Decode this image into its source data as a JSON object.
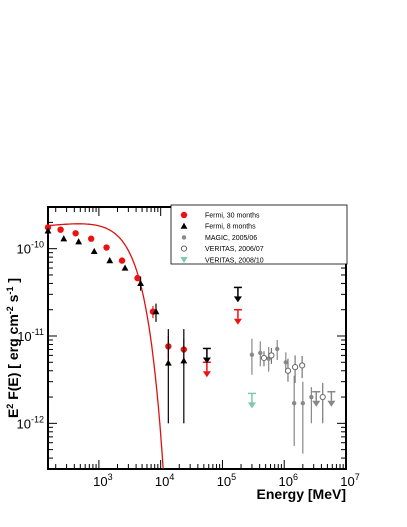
{
  "chart_data": {
    "type": "scatter",
    "xlabel": "Energy [MeV]",
    "ylabel": "E² F(E) [ erg cm⁻² s⁻¹ ]",
    "ylabel_parts": {
      "base": "E",
      "exp2": "2",
      "mid": " F(E) [ erg cm",
      "expm2": "-2",
      "s": " s",
      "expm1": "-1",
      "end": " ]"
    },
    "x_scale": "log",
    "y_scale": "log",
    "xlim": [
      150,
      10000000
    ],
    "ylim": [
      3e-13,
      3e-10
    ],
    "x_ticks": [
      {
        "value": 1000,
        "base": "10",
        "exp": "3"
      },
      {
        "value": 10000,
        "base": "10",
        "exp": "4"
      },
      {
        "value": 100000,
        "base": "10",
        "exp": "5"
      },
      {
        "value": 1000000,
        "base": "10",
        "exp": "6"
      },
      {
        "value": 10000000,
        "base": "10",
        "exp": "7"
      }
    ],
    "y_ticks": [
      {
        "value": 1e-12,
        "base": "10",
        "exp": "-12"
      },
      {
        "value": 1e-11,
        "base": "10",
        "exp": "-11"
      },
      {
        "value": 1e-10,
        "base": "10",
        "exp": "-10"
      }
    ],
    "legend_position": "top-right",
    "series": [
      {
        "name": "Fermi, 30 months",
        "marker": "circle",
        "color": "#ee1111",
        "points": [
          {
            "x": 150,
            "y": 1.75e-10
          },
          {
            "x": 240,
            "y": 1.65e-10
          },
          {
            "x": 420,
            "y": 1.5e-10
          },
          {
            "x": 750,
            "y": 1.3e-10
          },
          {
            "x": 1330,
            "y": 1.03e-10
          },
          {
            "x": 2370,
            "y": 7.3e-11
          },
          {
            "x": 4220,
            "y": 4.6e-11
          },
          {
            "x": 7500,
            "y": 1.9e-11,
            "ylo": 1.6e-11,
            "yhi": 2.2e-11
          },
          {
            "x": 13300,
            "y": 7.6e-12,
            "ylo": 5.4e-12,
            "yhi": 1e-11
          },
          {
            "x": 23700,
            "y": 7e-12,
            "ylo": 4.6e-12,
            "yhi": 9.3e-12
          }
        ],
        "upper_limits": [
          {
            "x": 56000,
            "y": 5e-12
          },
          {
            "x": 178000,
            "y": 2e-11
          }
        ]
      },
      {
        "name": "Fermi, 8 months",
        "marker": "triangle",
        "color": "#000000",
        "points": [
          {
            "x": 150,
            "y": 1.6e-10
          },
          {
            "x": 270,
            "y": 1.3e-10
          },
          {
            "x": 470,
            "y": 1.2e-10
          },
          {
            "x": 840,
            "y": 9.3e-11
          },
          {
            "x": 1500,
            "y": 7.3e-11
          },
          {
            "x": 2650,
            "y": 6e-11
          },
          {
            "x": 4730,
            "y": 4e-11,
            "ylo": 3.3e-11,
            "yhi": 4.8e-11
          },
          {
            "x": 8400,
            "y": 1.9e-11,
            "ylo": 1.45e-11,
            "yhi": 2.35e-11
          },
          {
            "x": 13300,
            "y": 4.9e-12,
            "ylo": 1e-12,
            "yhi": 1.2e-11
          },
          {
            "x": 23700,
            "y": 5.2e-12,
            "ylo": 1e-12,
            "yhi": 1.2e-11
          }
        ],
        "upper_limits": [
          {
            "x": 56000,
            "y": 7.2e-12
          },
          {
            "x": 178000,
            "y": 3.6e-11
          }
        ]
      },
      {
        "name": "MAGIC, 2005/06",
        "marker": "small-circle",
        "color": "#888888",
        "points": [
          {
            "x": 300000,
            "y": 6.1e-12,
            "ylo": 3.6e-12,
            "yhi": 9.3e-12
          },
          {
            "x": 410000,
            "y": 6.4e-12,
            "ylo": 4.5e-12,
            "yhi": 8.7e-12
          },
          {
            "x": 560000,
            "y": 5.5e-12,
            "ylo": 3.9e-12,
            "yhi": 7.5e-12
          },
          {
            "x": 770000,
            "y": 7.1e-12,
            "ylo": 5.3e-12,
            "yhi": 9e-12
          },
          {
            "x": 1060000,
            "y": 5e-12,
            "ylo": 3.8e-12,
            "yhi": 6.5e-12
          },
          {
            "x": 1450000,
            "y": 1.7e-12,
            "ylo": 5.5e-13,
            "yhi": 3.5e-12
          },
          {
            "x": 2000000,
            "y": 1.7e-12,
            "ylo": 4.5e-13,
            "yhi": 3e-12
          },
          {
            "x": 2750000,
            "y": 2e-12,
            "ylo": 1e-12,
            "yhi": 2.6e-12
          }
        ],
        "upper_limits": [
          {
            "x": 3300000,
            "y": 2.3e-12
          },
          {
            "x": 5800000,
            "y": 2.3e-12
          }
        ]
      },
      {
        "name": "VERITAS, 2006/07",
        "marker": "open-circle",
        "color": "#666666",
        "points": [
          {
            "x": 470000,
            "y": 5.6e-12,
            "ylo": 4.5e-12,
            "yhi": 6.7e-12
          },
          {
            "x": 620000,
            "y": 6e-12,
            "ylo": 4.8e-12,
            "yhi": 7.3e-12
          },
          {
            "x": 1150000,
            "y": 4e-12,
            "ylo": 3e-12,
            "yhi": 5.5e-12
          },
          {
            "x": 1500000,
            "y": 4.4e-12,
            "ylo": 2.9e-12,
            "yhi": 6e-12
          },
          {
            "x": 1950000,
            "y": 4.6e-12,
            "ylo": 3.3e-12,
            "yhi": 5.9e-12
          },
          {
            "x": 4200000,
            "y": 2e-12,
            "ylo": 1e-12,
            "yhi": 2.9e-12
          }
        ],
        "upper_limits": []
      },
      {
        "name": "VERITAS, 2008/10",
        "marker": "triangle-down",
        "color": "#7fc8a9",
        "points": [],
        "upper_limits": [
          {
            "x": 300000,
            "y": 2.2e-12
          }
        ]
      }
    ],
    "model_curve": {
      "color": "#dd1111",
      "form": "power-law-exp-cutoff",
      "norm": 1.85e-10,
      "pivot_mev": 150,
      "index": 1.92,
      "cutoff_mev": 3200,
      "sharpness": 1.55
    }
  }
}
